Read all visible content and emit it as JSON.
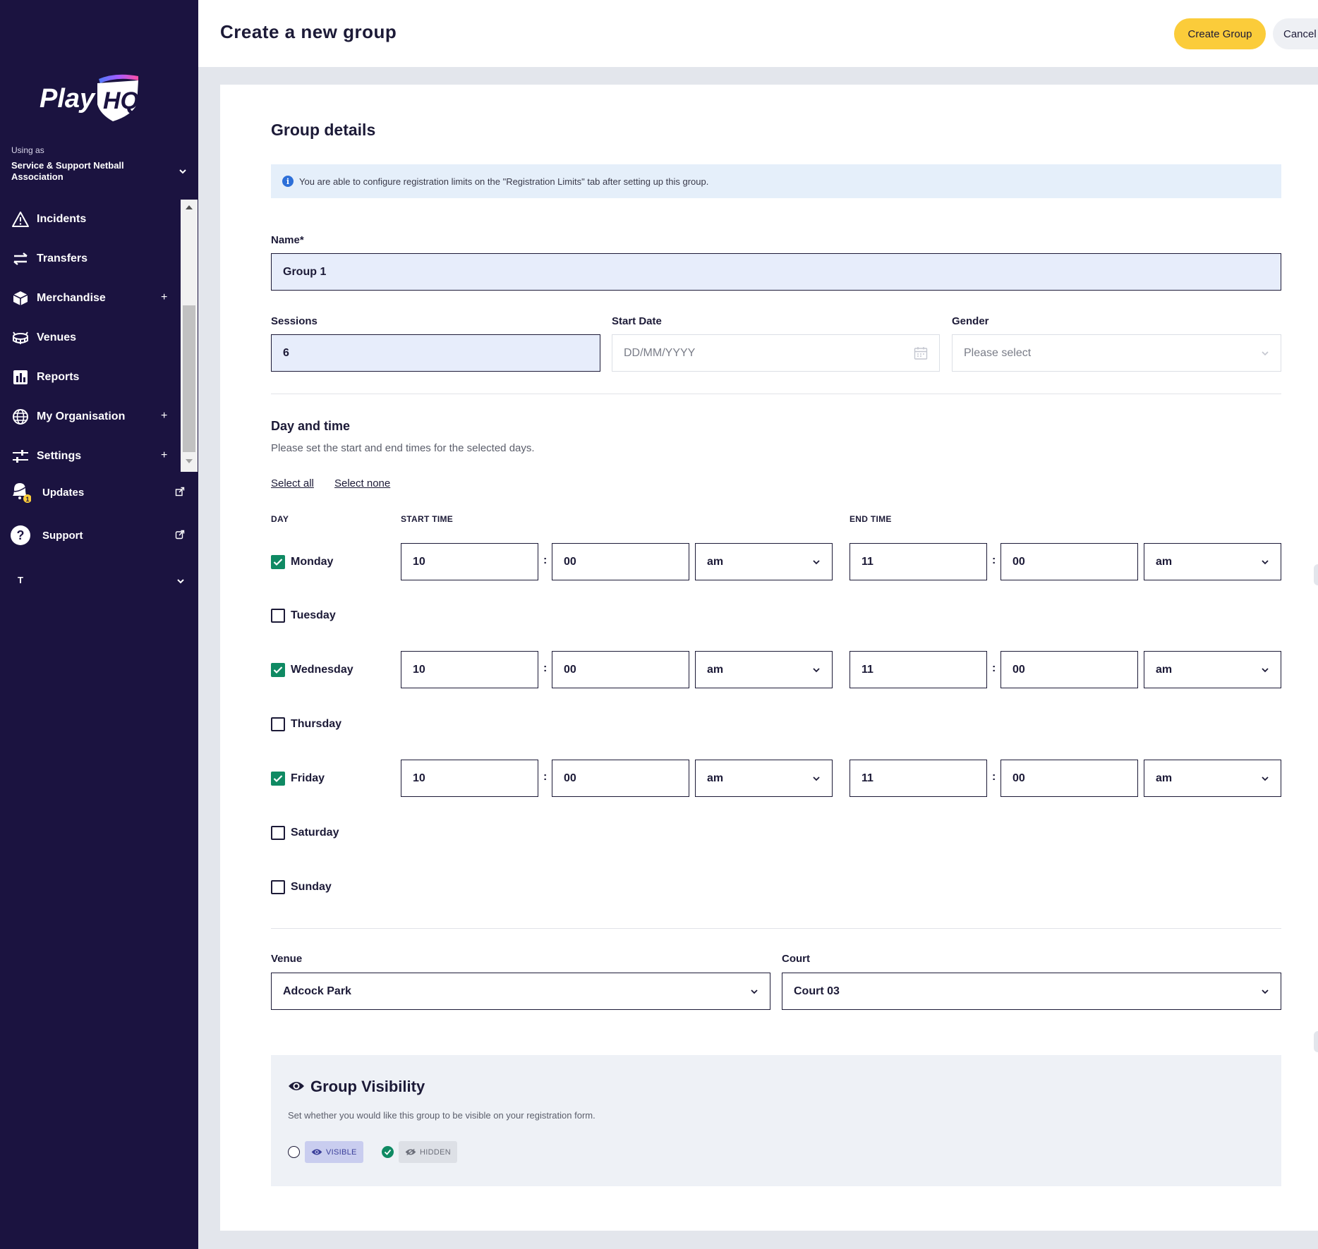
{
  "app": {
    "logo_text_play": "Play",
    "logo_text_hq": "HQ"
  },
  "sidebar": {
    "using_as_label": "Using as",
    "organisation_name": "Service & Support Netball Association",
    "nav_items": [
      {
        "label": "Incidents",
        "icon": "warning-icon",
        "expandable": false
      },
      {
        "label": "Transfers",
        "icon": "transfer-arrows-icon",
        "expandable": false
      },
      {
        "label": "Merchandise",
        "icon": "box-icon",
        "expandable": true
      },
      {
        "label": "Venues",
        "icon": "stadium-icon",
        "expandable": false
      },
      {
        "label": "Reports",
        "icon": "bar-chart-icon",
        "expandable": false
      },
      {
        "label": "My Organisation",
        "icon": "globe-icon",
        "expandable": true
      },
      {
        "label": "Settings",
        "icon": "sliders-icon",
        "expandable": true
      }
    ],
    "expand_symbol": "+",
    "updates": {
      "label": "Updates",
      "badge": "1"
    },
    "support": {
      "label": "Support",
      "icon_text": "?"
    },
    "user_initial": "T"
  },
  "header": {
    "title": "Create a new group",
    "create_button": "Create Group",
    "cancel_button": "Cancel"
  },
  "form": {
    "section_title": "Group details",
    "info_icon": "i",
    "info_text": "You are able to configure registration limits on the \"Registration Limits\" tab after setting up this group.",
    "name": {
      "label": "Name*",
      "value": "Group 1"
    },
    "sessions": {
      "label": "Sessions",
      "value": "6"
    },
    "start_date": {
      "label": "Start Date",
      "placeholder": "DD/MM/YYYY"
    },
    "gender": {
      "label": "Gender",
      "placeholder": "Please select"
    },
    "day_time": {
      "title": "Day and time",
      "description": "Please set the start and end times for the selected days.",
      "select_all": "Select all",
      "select_none": "Select none",
      "col_day": "DAY",
      "col_start": "START TIME",
      "col_end": "END TIME",
      "separator": ":",
      "days": [
        {
          "name": "Monday",
          "checked": true,
          "start_hour": "10",
          "start_min": "00",
          "start_ampm": "am",
          "end_hour": "11",
          "end_min": "00",
          "end_ampm": "am"
        },
        {
          "name": "Tuesday",
          "checked": false
        },
        {
          "name": "Wednesday",
          "checked": true,
          "start_hour": "10",
          "start_min": "00",
          "start_ampm": "am",
          "end_hour": "11",
          "end_min": "00",
          "end_ampm": "am"
        },
        {
          "name": "Thursday",
          "checked": false
        },
        {
          "name": "Friday",
          "checked": true,
          "start_hour": "10",
          "start_min": "00",
          "start_ampm": "am",
          "end_hour": "11",
          "end_min": "00",
          "end_ampm": "am"
        },
        {
          "name": "Saturday",
          "checked": false
        },
        {
          "name": "Sunday",
          "checked": false
        }
      ]
    },
    "venue": {
      "label": "Venue",
      "value": "Adcock Park"
    },
    "court": {
      "label": "Court",
      "value": "Court 03"
    },
    "visibility": {
      "title": "Group Visibility",
      "description": "Set whether you would like this group to be visible on your registration form.",
      "visible_label": "VISIBLE",
      "hidden_label": "HIDDEN",
      "selected": "hidden"
    }
  },
  "colors": {
    "sidebar_bg": "#1b1340",
    "accent_yellow": "#fbcc3a",
    "check_green": "#0f8a63",
    "input_fill": "#e7edfb",
    "info_bg": "#e5effa"
  }
}
